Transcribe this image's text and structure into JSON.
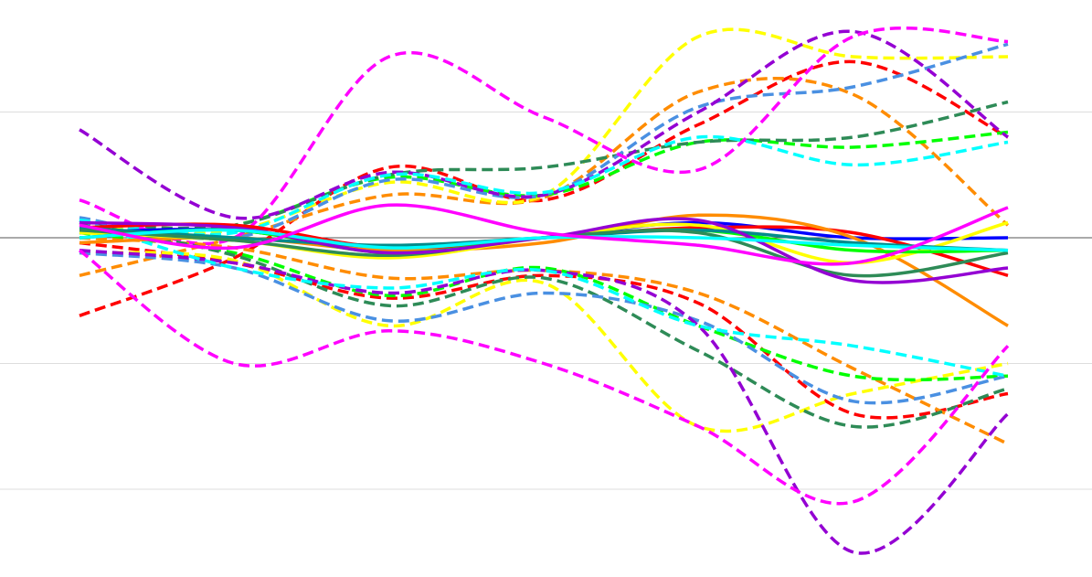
{
  "chart_data": {
    "type": "line",
    "title": "",
    "xlabel": "",
    "ylabel": "",
    "grid": true,
    "legend": "none",
    "x": [
      0,
      1,
      2,
      3,
      4,
      5,
      6
    ],
    "ylim": [
      -1.2,
      1.1
    ],
    "gridlines": [
      0.5,
      -0.5,
      -1.0
    ],
    "zero_line": 0,
    "series": [
      {
        "color": "#0000ff",
        "dash": "solid",
        "values": [
          0.02,
          0.03,
          -0.05,
          0.0,
          0.06,
          0.0,
          0.0
        ]
      },
      {
        "color": "#ff0000",
        "dash": "solid",
        "values": [
          0.04,
          0.05,
          -0.04,
          0.0,
          0.04,
          0.02,
          -0.15
        ]
      },
      {
        "color": "#ff8c00",
        "dash": "solid",
        "values": [
          -0.02,
          0.0,
          -0.05,
          -0.02,
          0.09,
          0.0,
          -0.35
        ]
      },
      {
        "color": "#ffff00",
        "dash": "solid",
        "values": [
          0.02,
          -0.01,
          -0.08,
          0.0,
          0.05,
          -0.1,
          0.06
        ]
      },
      {
        "color": "#00ff00",
        "dash": "solid",
        "values": [
          0.0,
          0.03,
          -0.06,
          0.0,
          0.03,
          -0.05,
          -0.05
        ]
      },
      {
        "color": "#008b8b",
        "dash": "solid",
        "values": [
          0.04,
          0.0,
          -0.03,
          0.0,
          0.03,
          -0.02,
          -0.05
        ]
      },
      {
        "color": "#2e8b57",
        "dash": "solid",
        "values": [
          0.03,
          -0.01,
          -0.07,
          0.0,
          0.02,
          -0.15,
          -0.06
        ]
      },
      {
        "color": "#9400d3",
        "dash": "solid",
        "values": [
          0.06,
          0.04,
          -0.06,
          0.0,
          0.07,
          -0.17,
          -0.12
        ]
      },
      {
        "color": "#00ffff",
        "dash": "solid",
        "values": [
          0.0,
          0.03,
          -0.04,
          0.0,
          0.0,
          -0.03,
          -0.05
        ]
      },
      {
        "color": "#ff00ff",
        "dash": "solid",
        "values": [
          0.05,
          -0.04,
          0.13,
          0.02,
          -0.03,
          -0.1,
          0.12
        ]
      },
      {
        "color": "#ff0000",
        "dash": "dashed",
        "values": [
          -0.31,
          -0.08,
          0.28,
          0.15,
          0.45,
          0.7,
          0.4
        ]
      },
      {
        "color": "#ff8c00",
        "dash": "dashed",
        "values": [
          -0.15,
          0.0,
          0.17,
          0.16,
          0.58,
          0.57,
          0.05
        ]
      },
      {
        "color": "#ffff00",
        "dash": "dashed",
        "values": [
          0.05,
          0.03,
          0.22,
          0.17,
          0.8,
          0.72,
          0.72
        ]
      },
      {
        "color": "#00ff00",
        "dash": "dashed",
        "values": [
          0.03,
          0.05,
          0.24,
          0.17,
          0.38,
          0.36,
          0.42
        ]
      },
      {
        "color": "#2e8b57",
        "dash": "dashed",
        "values": [
          0.06,
          0.05,
          0.25,
          0.28,
          0.38,
          0.4,
          0.54
        ]
      },
      {
        "color": "#4a90e2",
        "dash": "dashed",
        "values": [
          0.08,
          0.0,
          0.23,
          0.17,
          0.52,
          0.6,
          0.77
        ]
      },
      {
        "color": "#9400d3",
        "dash": "dashed",
        "values": [
          0.43,
          0.08,
          0.26,
          0.17,
          0.5,
          0.82,
          0.4
        ]
      },
      {
        "color": "#00ffff",
        "dash": "dashed",
        "values": [
          0.07,
          0.02,
          0.25,
          0.18,
          0.4,
          0.29,
          0.38
        ]
      },
      {
        "color": "#ff00ff",
        "dash": "dashed",
        "values": [
          0.15,
          0.0,
          0.72,
          0.48,
          0.27,
          0.8,
          0.78
        ]
      },
      {
        "color": "#ff0000",
        "dash": "dashed",
        "values": [
          -0.02,
          -0.1,
          -0.24,
          -0.15,
          -0.26,
          -0.7,
          -0.62
        ]
      },
      {
        "color": "#ff8c00",
        "dash": "dashed",
        "values": [
          0.0,
          -0.04,
          -0.16,
          -0.13,
          -0.22,
          -0.52,
          -0.82
        ]
      },
      {
        "color": "#ffff00",
        "dash": "dashed",
        "values": [
          -0.06,
          -0.09,
          -0.35,
          -0.18,
          -0.75,
          -0.62,
          -0.5
        ]
      },
      {
        "color": "#00ff00",
        "dash": "dashed",
        "values": [
          0.02,
          -0.06,
          -0.23,
          -0.12,
          -0.35,
          -0.55,
          -0.55
        ]
      },
      {
        "color": "#2e8b57",
        "dash": "dashed",
        "values": [
          0.06,
          -0.07,
          -0.27,
          -0.16,
          -0.45,
          -0.75,
          -0.6
        ]
      },
      {
        "color": "#4a90e2",
        "dash": "dashed",
        "values": [
          -0.06,
          -0.12,
          -0.33,
          -0.22,
          -0.33,
          -0.65,
          -0.55
        ]
      },
      {
        "color": "#9400d3",
        "dash": "dashed",
        "values": [
          -0.05,
          -0.1,
          -0.22,
          -0.13,
          -0.35,
          -1.25,
          -0.7
        ]
      },
      {
        "color": "#00ffff",
        "dash": "dashed",
        "values": [
          0.07,
          -0.12,
          -0.2,
          -0.13,
          -0.35,
          -0.43,
          -0.55
        ]
      },
      {
        "color": "#ff00ff",
        "dash": "dashed",
        "values": [
          -0.05,
          -0.5,
          -0.37,
          -0.5,
          -0.75,
          -1.05,
          -0.43
        ]
      }
    ]
  }
}
